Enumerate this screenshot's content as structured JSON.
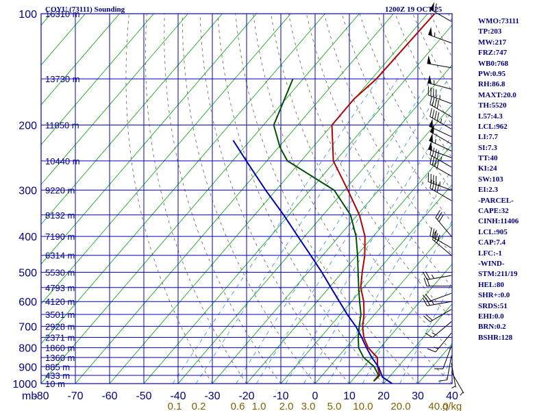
{
  "header": {
    "station": "COYU (73111) Sounding",
    "time": "1200Z 19 OCT 25"
  },
  "stats": [
    "WMO:73111",
    "TP:203",
    "MW:217",
    "FRZ:747",
    "WB0:768",
    "PW:0.95",
    "RH:86.8",
    "MAXT:20.0",
    "TH:5520",
    "L57:4.3",
    "LCL:962",
    "LI:7.7",
    "SI:7.3",
    "TT:40",
    "KI:24",
    "SW:103",
    "EI:2.3",
    "-PARCEL-",
    "CAPE:32",
    "CINH:11406",
    "LCL:905",
    "CAP:7.4",
    "LFC:-1",
    "-WIND-",
    "STM:211/19",
    "HEL:80",
    "SHR+:0.0",
    "SRDS:51",
    "EHI:0.0",
    "BRN:0.2",
    "BSHR:128"
  ],
  "colors": {
    "grid": "#0000c0",
    "isotherm": "#00a000",
    "dry_adiabat": "#606040",
    "mixing_ratio": "#3090d0",
    "temperature": "#b00000",
    "dewpoint": "#005000",
    "parcel": "#0000b0",
    "label": "#000080",
    "mixing_label": "#806000",
    "wind": "#000000"
  },
  "chart_data": {
    "type": "line",
    "title": "COYU (73111) Sounding",
    "xlabel": "",
    "ylabel": "mb",
    "x_ticks": [
      -80,
      -70,
      -60,
      -50,
      -40,
      -30,
      -20,
      -10,
      0,
      10,
      20,
      30,
      40
    ],
    "x_tick_labels": [
      "-80",
      "-70",
      "-60",
      "-50",
      "-40",
      "-30",
      "-20",
      "-10",
      "0",
      "10",
      "20",
      "30",
      "40"
    ],
    "x_axis_label": "mb",
    "pressure_ticks": [
      100,
      200,
      300,
      400,
      500,
      600,
      700,
      800,
      900,
      1000
    ],
    "pressure_tick_labels": [
      "100",
      "200",
      "300",
      "400",
      "500",
      "600",
      "700",
      "800",
      "900",
      "1000"
    ],
    "height_labels": [
      {
        "p": 100,
        "label": "16310 m"
      },
      {
        "p": 150,
        "label": "13730 m"
      },
      {
        "p": 200,
        "label": "11850 m"
      },
      {
        "p": 250,
        "label": "10440 m"
      },
      {
        "p": 300,
        "label": "9220 m"
      },
      {
        "p": 350,
        "label": "8132 m"
      },
      {
        "p": 400,
        "label": "7190 m"
      },
      {
        "p": 450,
        "label": "6314 m"
      },
      {
        "p": 500,
        "label": "5530 m"
      },
      {
        "p": 550,
        "label": "4793 m"
      },
      {
        "p": 600,
        "label": "4120 m"
      },
      {
        "p": 650,
        "label": "3501 m"
      },
      {
        "p": 700,
        "label": "2928 m"
      },
      {
        "p": 750,
        "label": "2371 m"
      },
      {
        "p": 800,
        "label": "1860 m"
      },
      {
        "p": 850,
        "label": "1360 m"
      },
      {
        "p": 900,
        "label": "885 m"
      },
      {
        "p": 950,
        "label": "433 m"
      },
      {
        "p": 1000,
        "label": "10 m"
      }
    ],
    "mixing_ratio_labels": [
      "0.1",
      "0.2",
      "0.6",
      "1.0",
      "2.0",
      "3.0",
      "5.0",
      "10.0",
      "20.0",
      "40.0",
      "g/kg"
    ],
    "ylim": [
      100,
      1000
    ],
    "xlim": [
      -80,
      40
    ],
    "log_pressure": true,
    "grid": true,
    "series": [
      {
        "key": "temperature",
        "values": [
          {
            "p": 100,
            "t": -58
          },
          {
            "p": 150,
            "t": -58.6
          },
          {
            "p": 170,
            "t": -60.1
          },
          {
            "p": 200,
            "t": -60
          },
          {
            "p": 250,
            "t": -50.6
          },
          {
            "p": 300,
            "t": -39
          },
          {
            "p": 350,
            "t": -29.4
          },
          {
            "p": 400,
            "t": -22.4
          },
          {
            "p": 450,
            "t": -17.7
          },
          {
            "p": 500,
            "t": -14.2
          },
          {
            "p": 550,
            "t": -10.8
          },
          {
            "p": 600,
            "t": -6.4
          },
          {
            "p": 650,
            "t": -3.1
          },
          {
            "p": 700,
            "t": -0.5
          },
          {
            "p": 750,
            "t": 2.6
          },
          {
            "p": 800,
            "t": 6.5
          },
          {
            "p": 850,
            "t": 11.6
          },
          {
            "p": 900,
            "t": 14.0
          },
          {
            "p": 950,
            "t": 16.8
          },
          {
            "p": 985,
            "t": 16.5
          }
        ]
      },
      {
        "key": "dewpoint",
        "values": [
          {
            "p": 150,
            "t": -83
          },
          {
            "p": 200,
            "t": -77
          },
          {
            "p": 230,
            "t": -69.5
          },
          {
            "p": 250,
            "t": -64
          },
          {
            "p": 300,
            "t": -43
          },
          {
            "p": 350,
            "t": -32
          },
          {
            "p": 400,
            "t": -25
          },
          {
            "p": 450,
            "t": -19.8
          },
          {
            "p": 500,
            "t": -15.4
          },
          {
            "p": 550,
            "t": -11.4
          },
          {
            "p": 600,
            "t": -7.6
          },
          {
            "p": 650,
            "t": -4
          },
          {
            "p": 700,
            "t": -1.5
          },
          {
            "p": 750,
            "t": 1.0
          },
          {
            "p": 800,
            "t": 3.7
          },
          {
            "p": 850,
            "t": 7.6
          },
          {
            "p": 900,
            "t": 13.0
          },
          {
            "p": 950,
            "t": 16.5
          },
          {
            "p": 985,
            "t": 16.5
          }
        ]
      },
      {
        "key": "parcel",
        "values": [
          {
            "p": 1000,
            "t": 22.5
          },
          {
            "p": 960,
            "t": 18.0
          },
          {
            "p": 905,
            "t": 14.6
          },
          {
            "p": 850,
            "t": 10.0
          },
          {
            "p": 800,
            "t": 6.0
          },
          {
            "p": 750,
            "t": 2.0
          },
          {
            "p": 700,
            "t": -2.5
          },
          {
            "p": 650,
            "t": -8.0
          },
          {
            "p": 600,
            "t": -13.5
          },
          {
            "p": 550,
            "t": -19.5
          },
          {
            "p": 500,
            "t": -26.0
          },
          {
            "p": 450,
            "t": -33.5
          },
          {
            "p": 400,
            "t": -42.0
          },
          {
            "p": 350,
            "t": -51.5
          },
          {
            "p": 300,
            "t": -63.0
          },
          {
            "p": 250,
            "t": -76.0
          },
          {
            "p": 220,
            "t": -85.0
          }
        ]
      }
    ],
    "wind_barbs": [
      {
        "p": 105,
        "dir": 300,
        "spd": 60
      },
      {
        "p": 120,
        "dir": 290,
        "spd": 55
      },
      {
        "p": 140,
        "dir": 280,
        "spd": 50
      },
      {
        "p": 160,
        "dir": 285,
        "spd": 55
      },
      {
        "p": 175,
        "dir": 290,
        "spd": 45
      },
      {
        "p": 190,
        "dir": 300,
        "spd": 40
      },
      {
        "p": 205,
        "dir": 300,
        "spd": 45
      },
      {
        "p": 215,
        "dir": 295,
        "spd": 50
      },
      {
        "p": 225,
        "dir": 300,
        "spd": 50
      },
      {
        "p": 235,
        "dir": 295,
        "spd": 55
      },
      {
        "p": 245,
        "dir": 290,
        "spd": 50
      },
      {
        "p": 260,
        "dir": 300,
        "spd": 45
      },
      {
        "p": 275,
        "dir": 300,
        "spd": 40
      },
      {
        "p": 300,
        "dir": 290,
        "spd": 45
      },
      {
        "p": 320,
        "dir": 300,
        "spd": 40
      },
      {
        "p": 400,
        "dir": 320,
        "spd": 30
      },
      {
        "p": 430,
        "dir": 300,
        "spd": 35
      },
      {
        "p": 450,
        "dir": 310,
        "spd": 30
      },
      {
        "p": 510,
        "dir": 260,
        "spd": 25
      },
      {
        "p": 545,
        "dir": 270,
        "spd": 20
      },
      {
        "p": 570,
        "dir": 250,
        "spd": 20
      },
      {
        "p": 600,
        "dir": 260,
        "spd": 25
      },
      {
        "p": 630,
        "dir": 240,
        "spd": 20
      },
      {
        "p": 680,
        "dir": 230,
        "spd": 15
      },
      {
        "p": 730,
        "dir": 220,
        "spd": 15
      },
      {
        "p": 790,
        "dir": 200,
        "spd": 10
      },
      {
        "p": 840,
        "dir": 190,
        "spd": 10
      },
      {
        "p": 880,
        "dir": 170,
        "spd": 5
      },
      {
        "p": 930,
        "dir": 150,
        "spd": 5
      }
    ]
  }
}
